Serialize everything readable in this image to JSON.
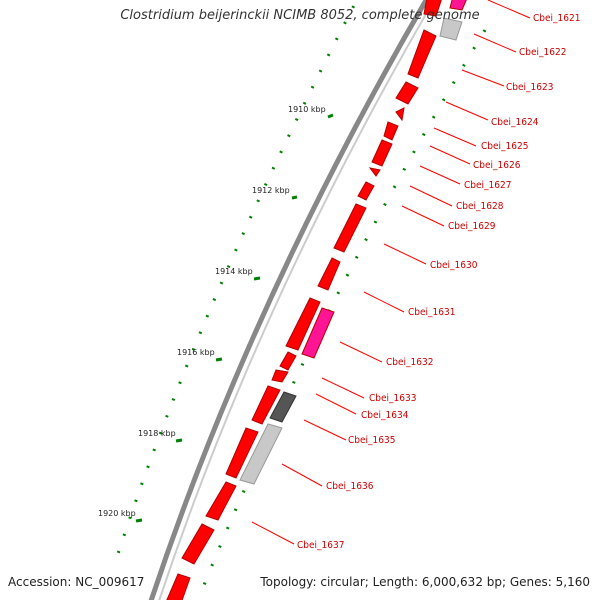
{
  "title": "Clostridium beijerinckii NCIMB 8052, complete genome",
  "footer": {
    "accession": "Accession: NC_009617",
    "topology": "Topology: circular; Length: 6,000,632 bp; Genes: 5,160"
  },
  "scale_labels": [
    "1910 kbp",
    "1912 kbp",
    "1914 kbp",
    "1916 kbp",
    "1918 kbp",
    "1920 kbp"
  ],
  "gene_labels": [
    "Cbei_1621",
    "Cbei_1622",
    "Cbei_1623",
    "Cbei_1624",
    "Cbei_1625",
    "Cbei_1626",
    "Cbei_1627",
    "Cbei_1628",
    "Cbei_1629",
    "Cbei_1630",
    "Cbei_1631",
    "Cbei_1632",
    "Cbei_1633",
    "Cbei_1634",
    "Cbei_1635",
    "Cbei_1636",
    "Cbei_1637"
  ],
  "colors": {
    "cds": "#ff0000",
    "cds_edge": "#b30000",
    "rna": "#ff1493",
    "pseudo_dark": "#555555",
    "pseudo_light": "#c8c8c8",
    "backbone": "#777777",
    "gc_dots": "#008000",
    "label_line": "#ff0000"
  }
}
